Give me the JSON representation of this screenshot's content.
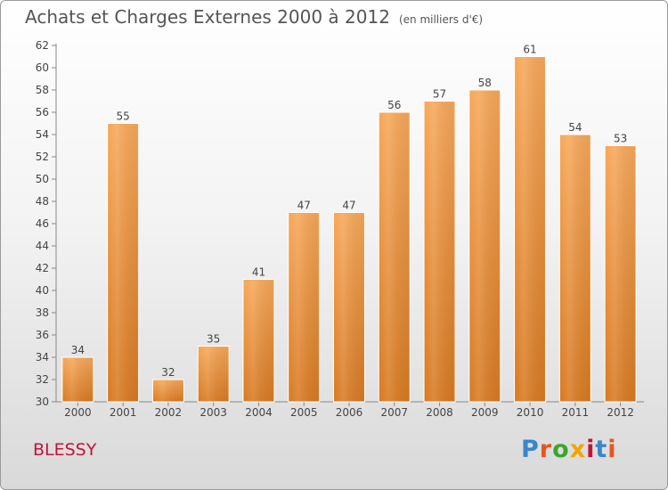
{
  "header": {
    "title": "Achats et Charges Externes 2000 à 2012",
    "unit": "(en milliers d'€)"
  },
  "footer": {
    "city": "BLESSY",
    "logo_text": "Proxiti",
    "logo_colors": [
      "#3a86c8",
      "#e8541e",
      "#3aa62c",
      "#f0a500",
      "#c0153b",
      "#3a86c8",
      "#e8541e"
    ]
  },
  "colors": {
    "bar_top": "#f7a85a",
    "bar_bottom": "#d87a22",
    "axis": "#888888",
    "label": "#444444",
    "city": "#c0153b"
  },
  "chart_data": {
    "type": "bar",
    "categories": [
      "2000",
      "2001",
      "2002",
      "2003",
      "2004",
      "2005",
      "2006",
      "2007",
      "2008",
      "2009",
      "2010",
      "2011",
      "2012"
    ],
    "values": [
      34,
      55,
      32,
      35,
      41,
      47,
      47,
      56,
      57,
      58,
      61,
      54,
      53
    ],
    "ylim": [
      30,
      62
    ],
    "yticks": [
      30,
      32,
      34,
      36,
      38,
      40,
      42,
      44,
      46,
      48,
      50,
      52,
      54,
      56,
      58,
      60,
      62
    ],
    "grid": false,
    "data_labels": true
  }
}
